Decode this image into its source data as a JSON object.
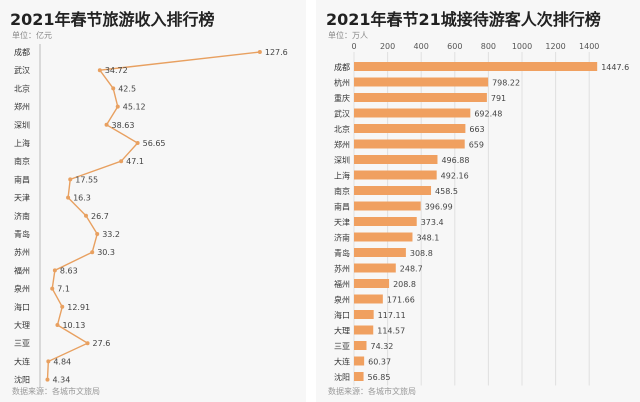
{
  "left": {
    "title": "2021年春节旅游收入排行榜",
    "unit": "单位：亿元",
    "source": "数据来源：各城市文旅局"
  },
  "right": {
    "title": "2021年春节21城接待游客人次排行榜",
    "unit": "单位：万人",
    "source": "数据来源：各城市文旅局"
  },
  "colors": {
    "accent": "#f0a060",
    "line": "#e8a060",
    "panel": "#f7f7f7"
  },
  "chart_data": [
    {
      "type": "line",
      "title": "2021年春节旅游收入排行榜",
      "ylabel": "单位：亿元",
      "orientation": "horizontal-value",
      "categories": [
        "成都",
        "武汉",
        "北京",
        "郑州",
        "深圳",
        "上海",
        "南京",
        "南昌",
        "天津",
        "济南",
        "青岛",
        "苏州",
        "福州",
        "泉州",
        "海口",
        "大理",
        "三亚",
        "大连",
        "沈阳"
      ],
      "values": [
        127.6,
        34.72,
        42.5,
        45.12,
        38.63,
        56.65,
        47.1,
        17.55,
        16.3,
        26.7,
        33.2,
        30.3,
        8.63,
        7.1,
        12.91,
        10.13,
        27.6,
        4.84,
        4.34
      ],
      "xlim": [
        0,
        130
      ]
    },
    {
      "type": "bar",
      "title": "2021年春节21城接待游客人次排行榜",
      "ylabel": "单位：万人",
      "orientation": "horizontal",
      "categories": [
        "成都",
        "杭州",
        "重庆",
        "武汉",
        "北京",
        "郑州",
        "深圳",
        "上海",
        "南京",
        "南昌",
        "天津",
        "济南",
        "青岛",
        "苏州",
        "福州",
        "泉州",
        "海口",
        "大理",
        "三亚",
        "大连",
        "沈阳"
      ],
      "values": [
        1447.6,
        798.22,
        791,
        692.48,
        663,
        659,
        496.88,
        492.16,
        458.5,
        396.99,
        373.4,
        348.1,
        308.8,
        248.7,
        208.8,
        171.66,
        117.11,
        114.57,
        74.32,
        60.37,
        56.85
      ],
      "value_labels": [
        "1447.6",
        "798.22",
        "791",
        "692.48",
        "663",
        "659",
        "496.88",
        "492.16",
        "458.5",
        "396.99",
        "373.4",
        "348.1",
        "308.8",
        "248.7",
        "208.8",
        "171.66",
        "117.11",
        "114.57",
        "74.32",
        "60.37",
        "56.85"
      ],
      "ticks": [
        0,
        200,
        400,
        600,
        800,
        1000,
        1200,
        1400
      ],
      "xlim": [
        0,
        1500
      ]
    }
  ]
}
